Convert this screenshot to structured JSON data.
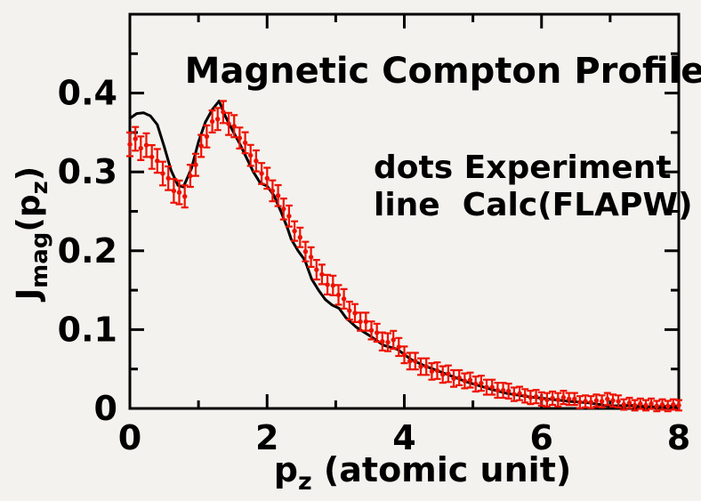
{
  "chart_data": {
    "type": "line",
    "title": "Magnetic Compton Profile",
    "xlabel": "pz (atomic unit)",
    "ylabel": "Jmag(pz)",
    "xlim": [
      0,
      8
    ],
    "ylim": [
      0,
      0.5
    ],
    "grid": false,
    "legend_position": "inside middle-right, as plain text",
    "x_ticks": {
      "major": [
        0,
        2,
        4,
        6,
        8
      ],
      "major_labels": [
        "0",
        "2",
        "4",
        "6",
        "8"
      ],
      "minor": [
        1,
        3,
        5,
        7
      ]
    },
    "y_ticks": {
      "major": [
        0,
        0.1,
        0.2,
        0.3,
        0.4
      ],
      "major_labels": [
        "0",
        "0.1",
        "0.2",
        "0.3",
        "0.4"
      ],
      "minor": [
        0.05,
        0.15,
        0.25,
        0.35,
        0.45
      ]
    },
    "series": [
      {
        "name": "Experiment",
        "style": "scatter_with_error_bars",
        "color": "#ee1100",
        "x": [
          0,
          0.08,
          0.16,
          0.24,
          0.32,
          0.4,
          0.48,
          0.56,
          0.64,
          0.72,
          0.8,
          0.88,
          0.96,
          1.04,
          1.12,
          1.2,
          1.28,
          1.36,
          1.44,
          1.52,
          1.6,
          1.68,
          1.76,
          1.84,
          1.92,
          2,
          2.08,
          2.16,
          2.24,
          2.32,
          2.4,
          2.48,
          2.56,
          2.64,
          2.72,
          2.8,
          2.88,
          2.96,
          3.04,
          3.12,
          3.2,
          3.28,
          3.36,
          3.44,
          3.52,
          3.6,
          3.68,
          3.76,
          3.84,
          3.92,
          4,
          4.08,
          4.16,
          4.24,
          4.32,
          4.4,
          4.48,
          4.56,
          4.64,
          4.72,
          4.8,
          4.88,
          4.96,
          5.04,
          5.12,
          5.2,
          5.28,
          5.36,
          5.44,
          5.52,
          5.6,
          5.68,
          5.76,
          5.84,
          5.92,
          6,
          6.08,
          6.16,
          6.24,
          6.32,
          6.4,
          6.48,
          6.56,
          6.64,
          6.72,
          6.8,
          6.88,
          6.96,
          7.04,
          7.12,
          7.2,
          7.28,
          7.36,
          7.44,
          7.52,
          7.6,
          7.68,
          7.76,
          7.84,
          7.92,
          8
        ],
        "y": [
          0.335,
          0.342,
          0.33,
          0.334,
          0.319,
          0.314,
          0.298,
          0.292,
          0.276,
          0.274,
          0.269,
          0.295,
          0.309,
          0.333,
          0.345,
          0.364,
          0.367,
          0.376,
          0.361,
          0.358,
          0.343,
          0.337,
          0.321,
          0.314,
          0.298,
          0.292,
          0.276,
          0.27,
          0.253,
          0.244,
          0.225,
          0.217,
          0.199,
          0.192,
          0.176,
          0.17,
          0.157,
          0.156,
          0.144,
          0.139,
          0.124,
          0.121,
          0.11,
          0.11,
          0.099,
          0.096,
          0.085,
          0.084,
          0.087,
          0.078,
          0.068,
          0.06,
          0.06,
          0.053,
          0.053,
          0.047,
          0.048,
          0.043,
          0.044,
          0.038,
          0.039,
          0.035,
          0.036,
          0.031,
          0.032,
          0.027,
          0.027,
          0.023,
          0.023,
          0.022,
          0.018,
          0.019,
          0.016,
          0.014,
          0.015,
          0.012,
          0.011,
          0.013,
          0.011,
          0.014,
          0.012,
          0.012,
          0.008,
          0.009,
          0.008,
          0.01,
          0.009,
          0.012,
          0.01,
          0.009,
          0.005,
          0.007,
          0.004,
          0.006,
          0.004,
          0.006,
          0.003,
          0.005,
          0.003,
          0.005,
          0.004
        ],
        "yerr": [
          0.015,
          0.015,
          0.015,
          0.015,
          0.015,
          0.015,
          0.015,
          0.015,
          0.015,
          0.015,
          0.014,
          0.014,
          0.014,
          0.014,
          0.014,
          0.014,
          0.014,
          0.014,
          0.014,
          0.014,
          0.0133,
          0.0133,
          0.0133,
          0.0133,
          0.0133,
          0.0133,
          0.0133,
          0.0133,
          0.0133,
          0.0133,
          0.0124,
          0.0124,
          0.0124,
          0.0124,
          0.0124,
          0.0124,
          0.0124,
          0.0124,
          0.0124,
          0.0124,
          0.0114,
          0.0114,
          0.0114,
          0.0114,
          0.0114,
          0.0114,
          0.0114,
          0.0114,
          0.0114,
          0.0114,
          0.0105,
          0.0105,
          0.0105,
          0.0105,
          0.0105,
          0.0105,
          0.0105,
          0.0105,
          0.0105,
          0.0105,
          0.0095,
          0.0095,
          0.0095,
          0.0095,
          0.0095,
          0.0095,
          0.0095,
          0.0095,
          0.0095,
          0.0095,
          0.0085,
          0.0085,
          0.0085,
          0.0085,
          0.0085,
          0.0085,
          0.0085,
          0.0085,
          0.0085,
          0.0085,
          0.0076,
          0.0076,
          0.0076,
          0.0076,
          0.0076,
          0.0076,
          0.0076,
          0.0076,
          0.0076,
          0.0076,
          0.0066,
          0.0066,
          0.0066,
          0.0066,
          0.0066,
          0.0066,
          0.0066,
          0.0066,
          0.0066,
          0.0066,
          0.0066
        ]
      },
      {
        "name": "Calc(FLAPW)",
        "style": "line",
        "color": "#000000",
        "x": [
          0,
          0.1,
          0.2,
          0.3,
          0.4,
          0.5,
          0.6,
          0.7,
          0.78,
          0.9,
          1.0,
          1.1,
          1.2,
          1.3,
          1.4,
          1.5,
          1.6,
          1.7,
          1.8,
          1.9,
          2.0,
          2.1,
          2.2,
          2.3,
          2.35,
          2.45,
          2.55,
          2.65,
          2.75,
          2.85,
          2.95,
          3.05,
          3.15,
          3.3,
          3.5,
          3.7,
          3.9,
          4.1,
          4.3,
          4.6,
          4.9,
          5.2,
          5.5,
          5.8,
          6.1,
          6.4,
          6.7,
          7.0,
          7.3,
          7.6,
          8.0
        ],
        "y": [
          0.368,
          0.374,
          0.375,
          0.371,
          0.36,
          0.332,
          0.302,
          0.283,
          0.281,
          0.305,
          0.338,
          0.363,
          0.379,
          0.39,
          0.369,
          0.352,
          0.336,
          0.318,
          0.3,
          0.286,
          0.282,
          0.27,
          0.25,
          0.228,
          0.215,
          0.2,
          0.188,
          0.164,
          0.15,
          0.138,
          0.131,
          0.127,
          0.115,
          0.103,
          0.092,
          0.08,
          0.075,
          0.062,
          0.054,
          0.044,
          0.034,
          0.026,
          0.019,
          0.015,
          0.012,
          0.009,
          0.007,
          0.003,
          0.004,
          0.002,
          0.003
        ]
      }
    ]
  },
  "labels": {
    "legend_dots": "dots Experiment",
    "legend_line": "line  Calc(FLAPW)",
    "xlabel": {
      "base": "p",
      "sub": "z",
      "rest": " (atomic unit)"
    },
    "ylabel": {
      "base": "J",
      "sub": "mag",
      "mid": "(p",
      "sub2": "z",
      "close": ")"
    }
  },
  "colors": {
    "background": "#f3f2ee",
    "axes": "#000000",
    "text": "#000000",
    "experiment": "#ee1100",
    "calculation": "#000000"
  }
}
